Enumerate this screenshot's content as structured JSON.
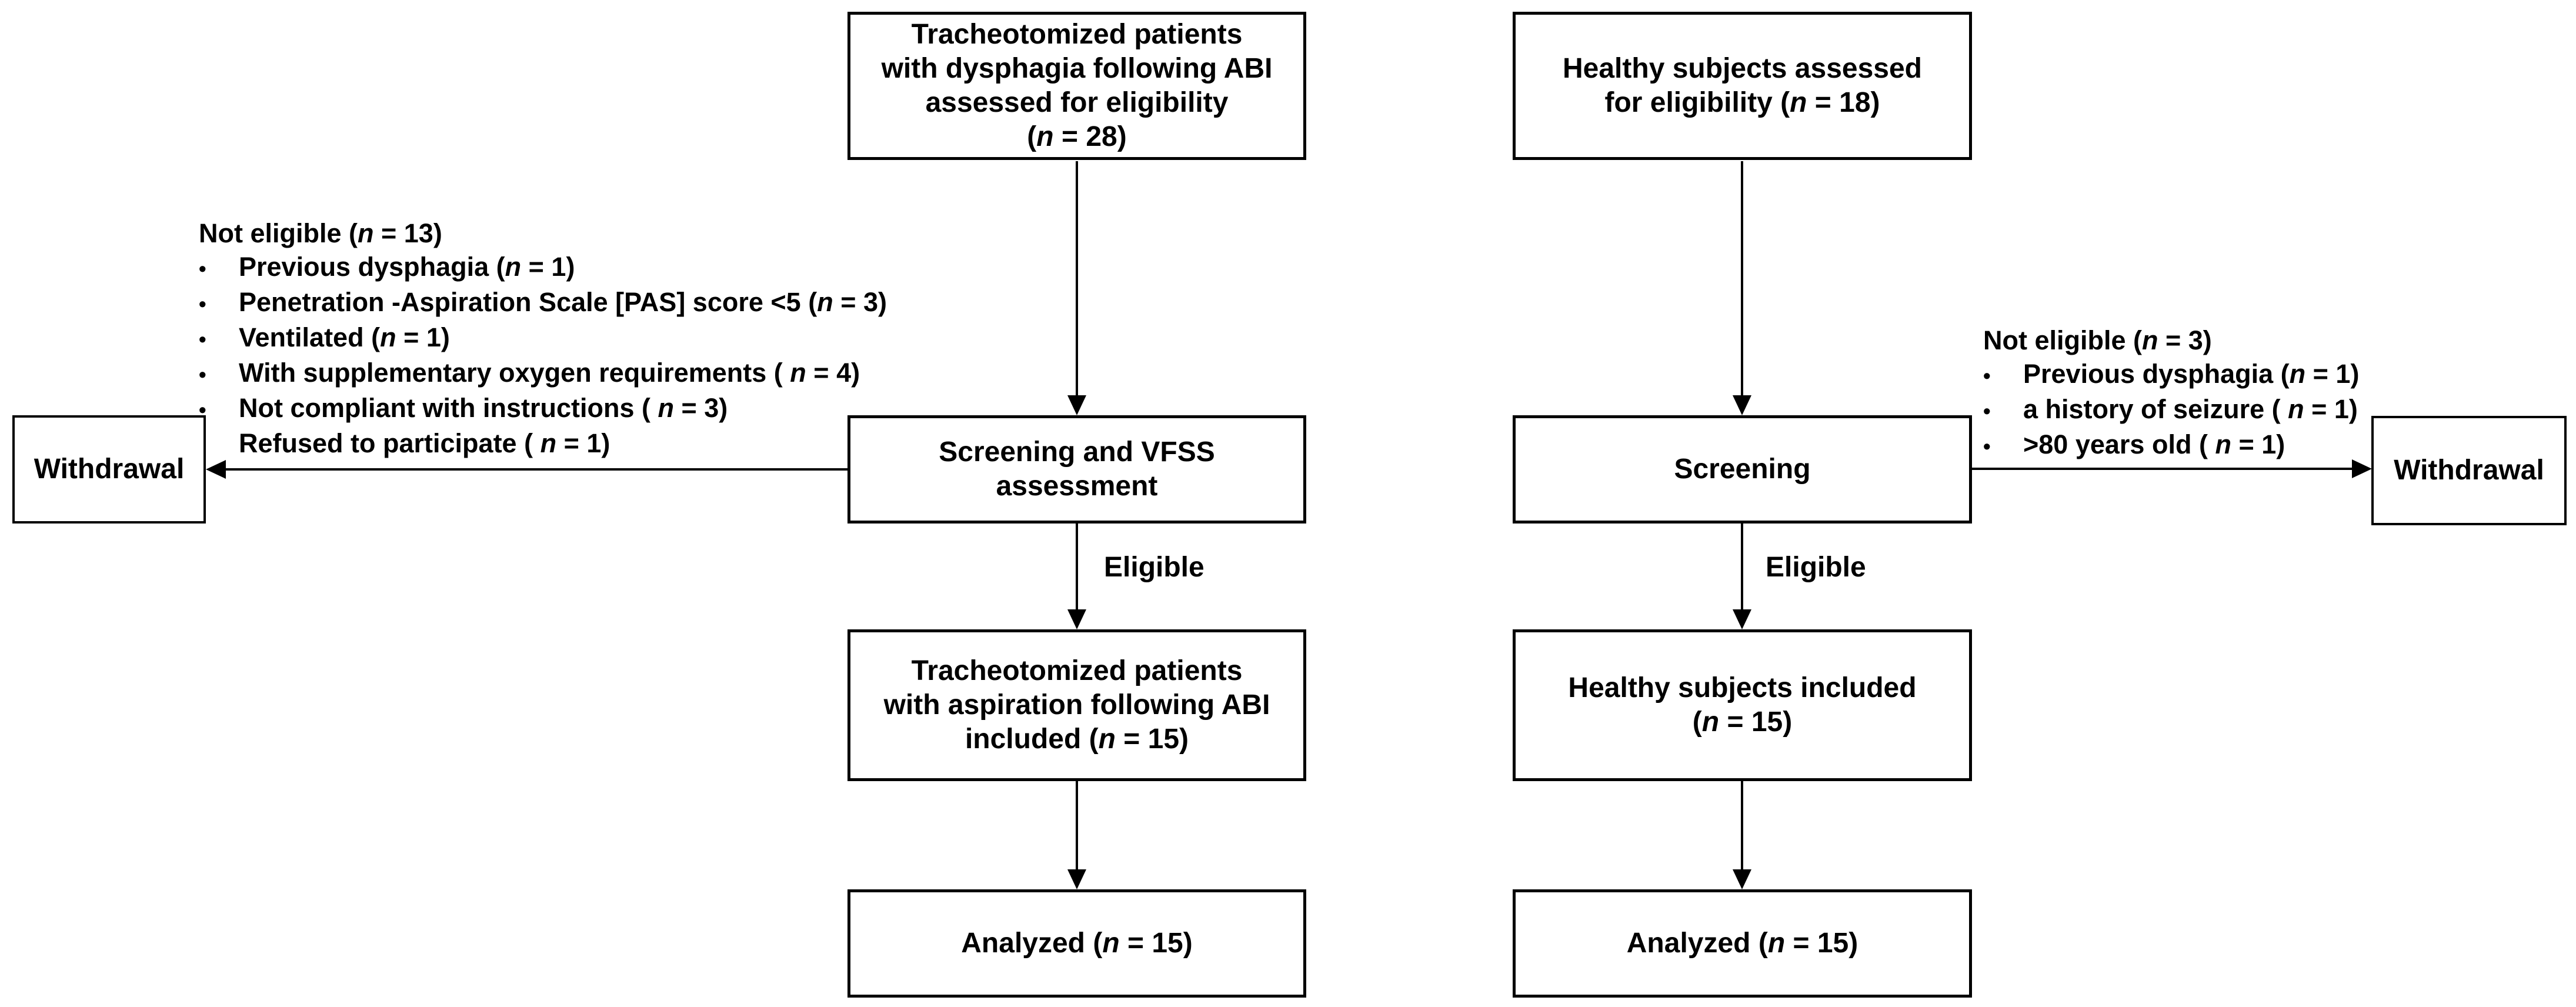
{
  "flowchart": {
    "colors": {
      "background": "#ffffff",
      "line": "#000000",
      "text": "#000000"
    },
    "patient_arm": {
      "assessed_box": {
        "lines": [
          "Tracheotomized patients",
          "with dysphagia following ABI",
          "assessed for eligibility",
          "(n = 28)"
        ]
      },
      "not_eligible_note": {
        "label": "Not eligible (n = 13)",
        "items": [
          "Previous dysphagia (n = 1)",
          "Penetration -Aspiration Scale [PAS] score <5 (n = 3)",
          "Ventilated (n = 1)",
          "With supplementary oxygen requirements ( n = 4)",
          "Not compliant with instructions ( n = 3)",
          "Refused to participate ( n = 1)"
        ]
      },
      "withdrawal_box": {
        "label": "Withdrawal"
      },
      "screening_box": {
        "lines": [
          "Screening and VFSS",
          "assessment"
        ]
      },
      "eligible_label": "Eligible",
      "included_box": {
        "lines": [
          "Tracheotomized patients",
          "with aspiration following ABI",
          "included (n = 15)"
        ]
      },
      "analyzed_box": {
        "label": "Analyzed (n = 15)"
      }
    },
    "healthy_arm": {
      "assessed_box": {
        "lines": [
          "Healthy subjects assessed",
          "for eligibility (n = 18)"
        ]
      },
      "not_eligible_note": {
        "label": "Not eligible (n = 3)",
        "items": [
          "Previous dysphagia (n = 1)",
          "a history of seizure ( n = 1)",
          ">80 years old ( n = 1)"
        ]
      },
      "withdrawal_box": {
        "label": "Withdrawal"
      },
      "screening_box": {
        "lines": [
          "Screening"
        ]
      },
      "eligible_label": "Eligible",
      "included_box": {
        "lines": [
          "Healthy subjects included",
          "(n = 15)"
        ]
      },
      "analyzed_box": {
        "label": "Analyzed (n = 15)"
      }
    }
  }
}
